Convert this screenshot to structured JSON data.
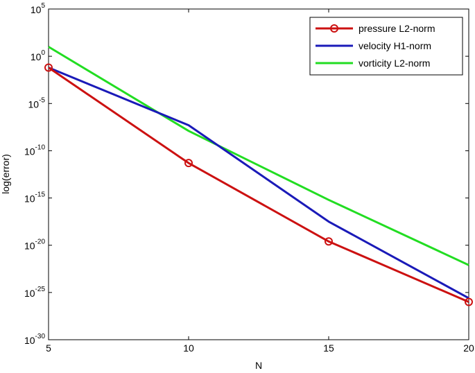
{
  "chart_data": {
    "type": "line",
    "xlabel": "N",
    "ylabel": "log(error)",
    "xlim": [
      5,
      20
    ],
    "ylim_log10": [
      -30,
      5
    ],
    "yscale": "log",
    "x_ticks": [
      5,
      10,
      15,
      20
    ],
    "y_tick_exponents": [
      5,
      0,
      -5,
      -10,
      -15,
      -20,
      -25,
      -30
    ],
    "grid": false,
    "legend_position": "top-right",
    "series": [
      {
        "name": "pressure L2-norm",
        "color": "#cc1111",
        "marker": "circle",
        "x": [
          5,
          10,
          15,
          20
        ],
        "log10_y": [
          -1.2,
          -11.3,
          -19.6,
          -26.0
        ]
      },
      {
        "name": "velocity H1-norm",
        "color": "#1a1ab8",
        "marker": "none",
        "x": [
          5,
          10,
          15,
          20
        ],
        "log10_y": [
          -1.2,
          -7.3,
          -17.5,
          -25.6
        ]
      },
      {
        "name": "vorticity L2-norm",
        "color": "#22dd22",
        "marker": "none",
        "x": [
          5,
          10,
          15,
          20
        ],
        "log10_y": [
          1.0,
          -7.9,
          -15.2,
          -22.1
        ]
      }
    ]
  }
}
